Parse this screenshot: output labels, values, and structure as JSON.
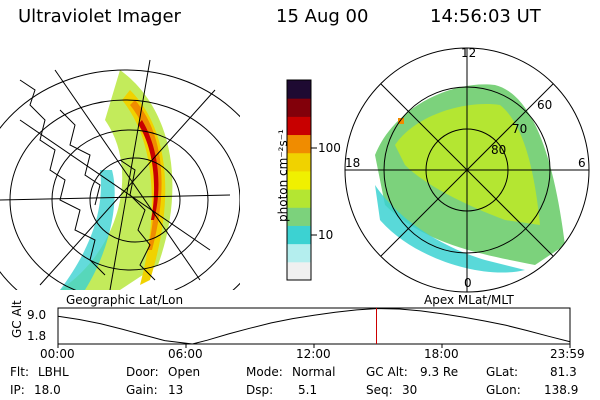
{
  "header": {
    "instrument": "Ultraviolet Imager",
    "date": "15 Aug 00",
    "time": "14:56:03 UT"
  },
  "panels": {
    "geographic_label": "Geographic Lat/Lon",
    "apex_label": "Apex MLat/MLT"
  },
  "colorbar": {
    "unit_label": "photon cm⁻²s⁻¹",
    "ticks": [
      "100",
      "10"
    ],
    "colors": [
      "#f0f0f0",
      "#b4eeee",
      "#3cd2d2",
      "#7cd27c",
      "#b4e632",
      "#f0f000",
      "#f0d200",
      "#f08c00",
      "#c80000",
      "#82000a",
      "#1e0a32"
    ]
  },
  "polar_plot": {
    "mlt_labels": [
      "12",
      "18",
      "6",
      "0"
    ],
    "mlat_labels": [
      "60",
      "70",
      "80"
    ]
  },
  "chart_data": {
    "type": "line",
    "title": "GC Alt",
    "ylabel": "GC Alt",
    "yticks": [
      "9.0",
      "1.8"
    ],
    "ylim": [
      1.8,
      9.3
    ],
    "xticks": [
      "00:00",
      "06:00",
      "12:00",
      "18:00",
      "23:59"
    ],
    "x_hours": [
      0,
      1,
      2,
      3,
      4,
      5,
      6.3,
      7,
      8,
      9,
      10,
      11,
      12,
      13,
      14,
      15,
      16,
      17,
      18,
      19,
      20,
      21,
      22,
      23,
      23.98
    ],
    "altitude": [
      7.6,
      6.9,
      6.0,
      4.9,
      3.7,
      2.5,
      1.8,
      2.6,
      3.9,
      5.1,
      6.2,
      7.1,
      7.8,
      8.4,
      8.9,
      9.2,
      9.1,
      8.7,
      8.1,
      7.4,
      6.6,
      5.7,
      4.6,
      3.4,
      2.3
    ],
    "current_time_hours": 14.93,
    "marker_color": "#cc0000"
  },
  "info": {
    "flt_label": "Flt:",
    "flt_value": "LBHL",
    "ip_label": "IP:",
    "ip_value": "18.0",
    "door_label": "Door:",
    "door_value": "Open",
    "gain_label": "Gain:",
    "gain_value": "13",
    "mode_label": "Mode:",
    "mode_value": "Normal",
    "dsp_label": "Dsp:",
    "dsp_value": "5.1",
    "gcalt_label": "GC Alt:",
    "gcalt_value": "9.3 Re",
    "seq_label": "Seq:",
    "seq_value": "30",
    "glat_label": "GLat:",
    "glat_value": "81.3",
    "glon_label": "GLon:",
    "glon_value": "138.9"
  }
}
